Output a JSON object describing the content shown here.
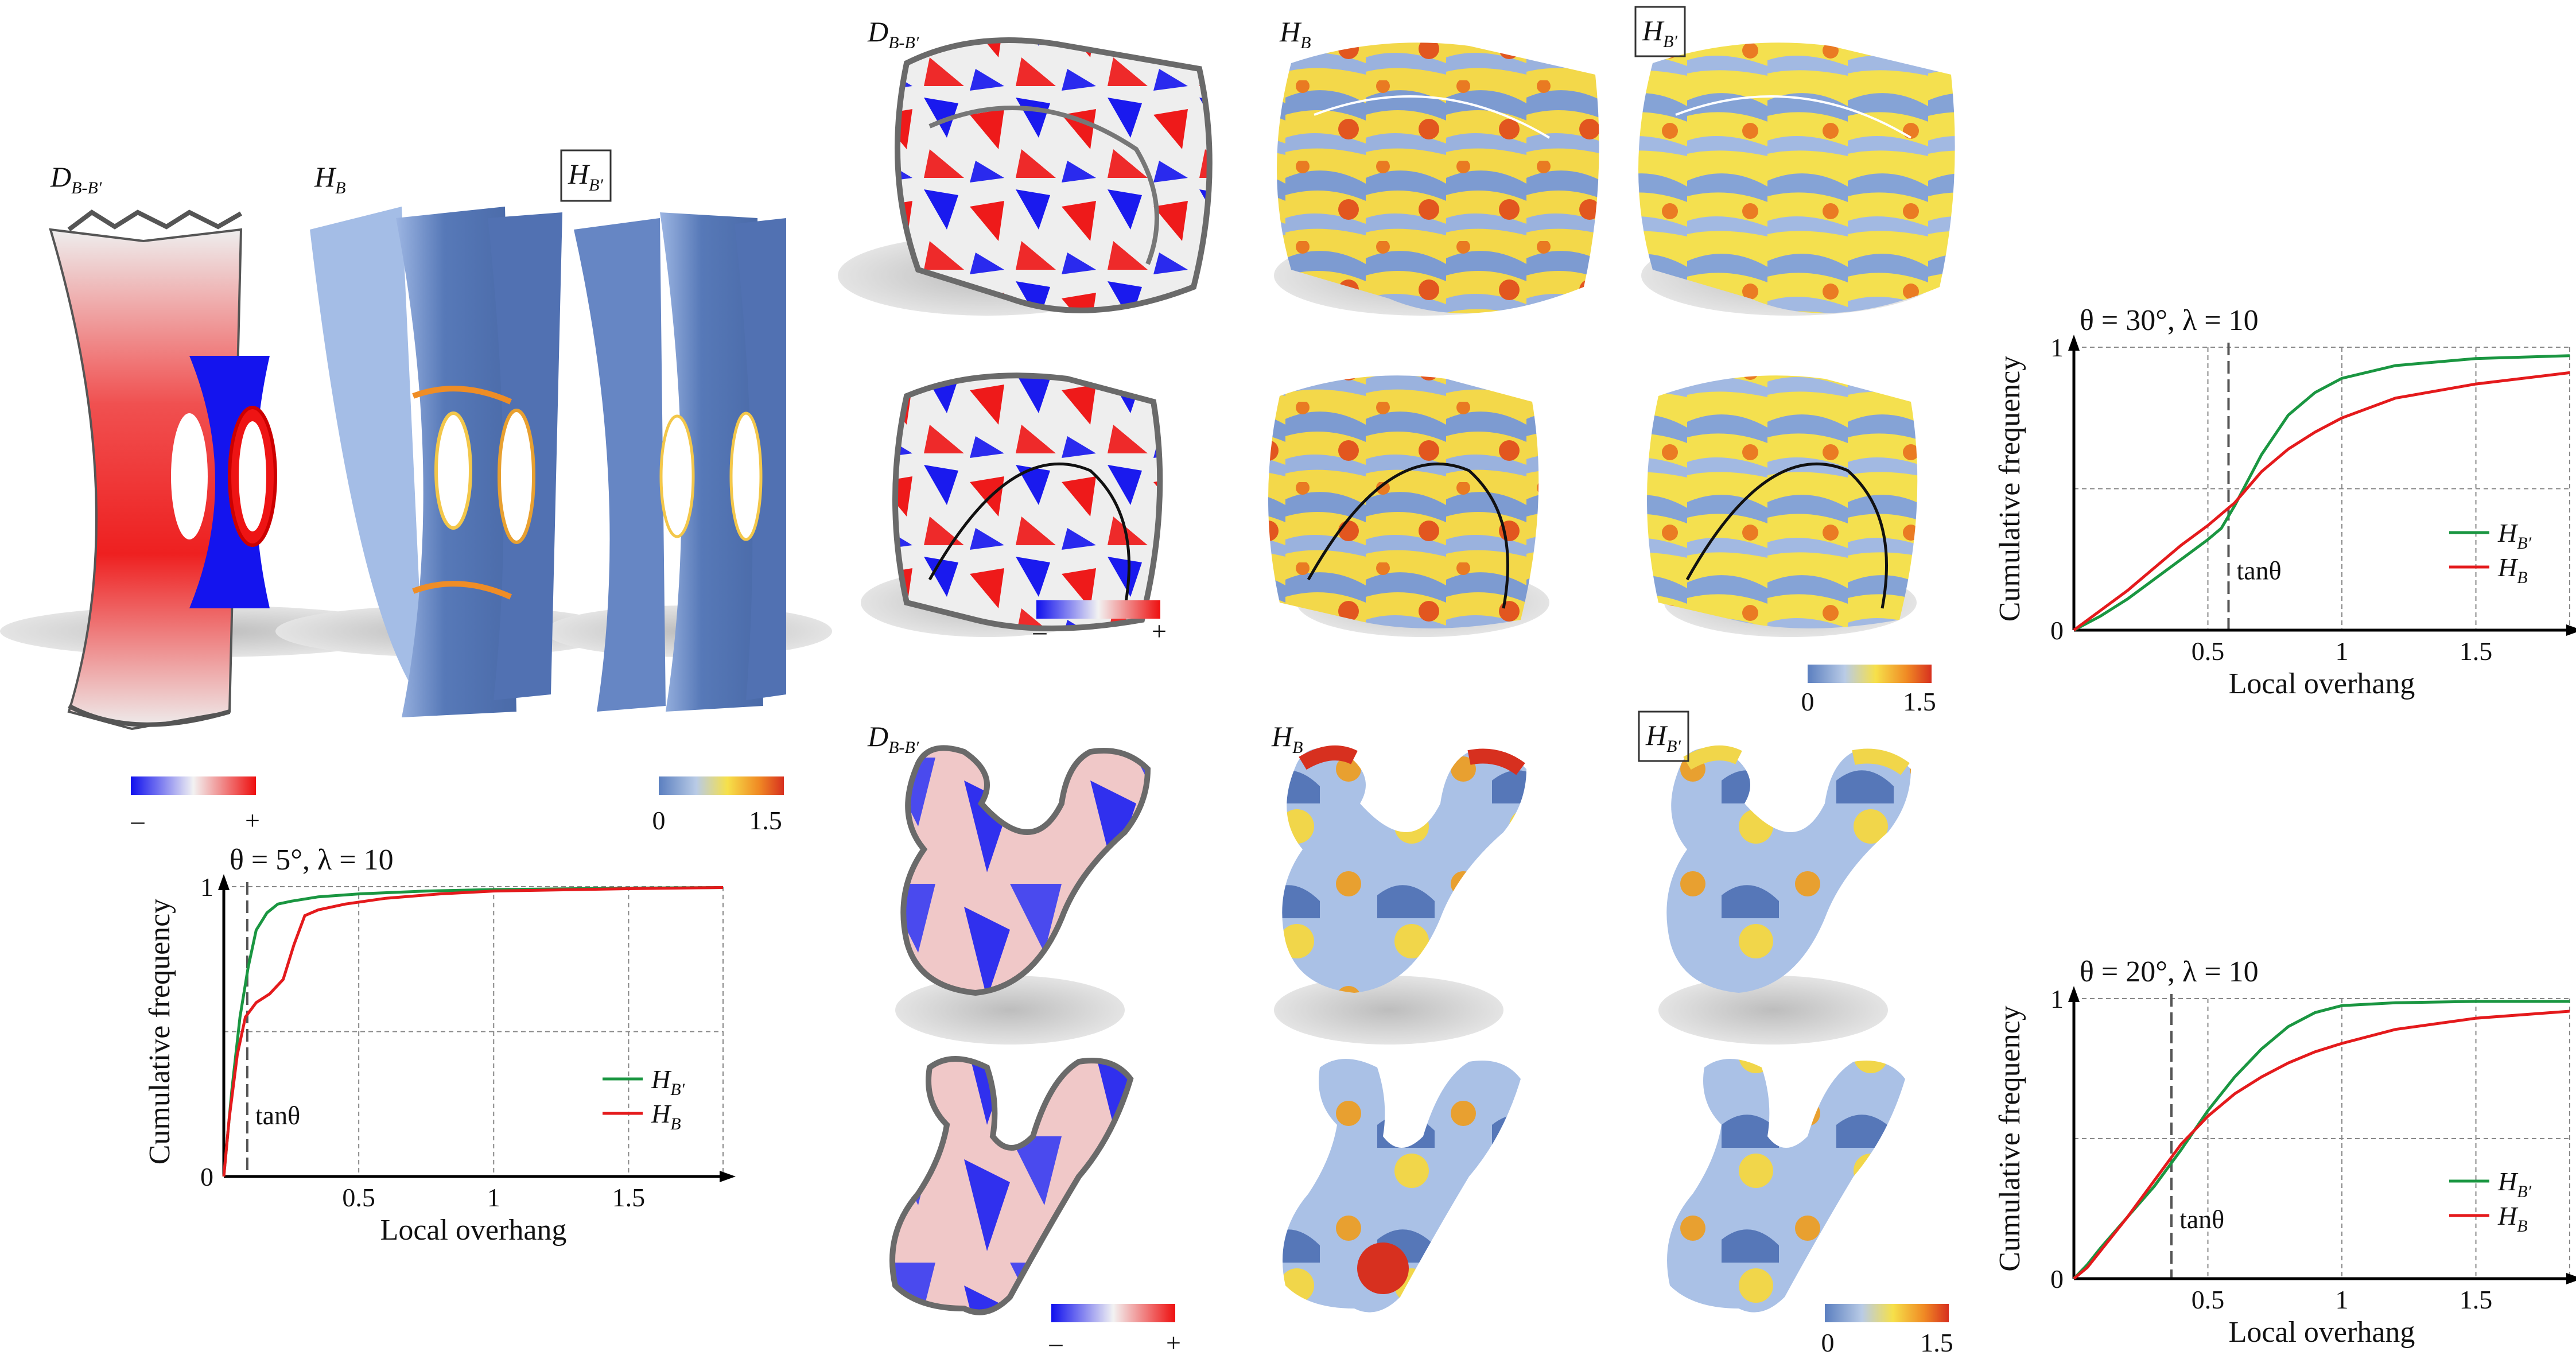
{
  "figure": {
    "labels": {
      "d": "D",
      "d_sub": "B-B′",
      "hb": "H",
      "hb_sub": "B",
      "hbp": "H",
      "hbp_sub": "B′"
    },
    "colorbars": {
      "diff_min": "–",
      "diff_max": "+",
      "h_min": "0",
      "h_max": "1.5"
    },
    "colors": {
      "green": "#1a9641",
      "red": "#e41a1c",
      "diff_neg": "#1010ee",
      "diff_pos": "#ee1010",
      "h_low": "#5b7fc0",
      "h_mid": "#f6e04a",
      "h_high": "#d7301f"
    }
  },
  "chart_data": [
    {
      "id": "c1",
      "type": "line",
      "title": "θ = 5°, λ = 10",
      "xlabel": "Local overhang",
      "ylabel": "Cumulative frequency",
      "xlim": [
        0,
        1.85
      ],
      "ylim": [
        0,
        1
      ],
      "xticks": [
        0.5,
        1,
        1.5
      ],
      "xtick_labels": [
        "0.5",
        "1",
        "1.5"
      ],
      "yticks": [
        0,
        1
      ],
      "ytick_labels": [
        "0",
        "1"
      ],
      "gridlines_y": [
        0.5,
        1
      ],
      "tan_x": 0.087,
      "tan_label": "tanθ",
      "series": [
        {
          "name": "H_B′",
          "legend": "H",
          "legend_sub": "B′",
          "color": "#1a9641",
          "x": [
            0,
            0.03,
            0.06,
            0.09,
            0.12,
            0.16,
            0.2,
            0.25,
            0.35,
            0.5,
            0.75,
            1.0,
            1.5,
            1.85
          ],
          "y": [
            0,
            0.3,
            0.55,
            0.72,
            0.85,
            0.91,
            0.94,
            0.95,
            0.965,
            0.975,
            0.985,
            0.99,
            0.995,
            0.997
          ]
        },
        {
          "name": "H_B",
          "legend": "H",
          "legend_sub": "B",
          "color": "#e41a1c",
          "x": [
            0,
            0.02,
            0.05,
            0.08,
            0.12,
            0.17,
            0.22,
            0.26,
            0.3,
            0.35,
            0.45,
            0.6,
            0.8,
            1.0,
            1.5,
            1.85
          ],
          "y": [
            0,
            0.2,
            0.42,
            0.55,
            0.6,
            0.63,
            0.68,
            0.8,
            0.9,
            0.92,
            0.94,
            0.96,
            0.975,
            0.985,
            0.993,
            0.997
          ]
        }
      ]
    },
    {
      "id": "c2",
      "type": "line",
      "title": "θ = 30°, λ = 10",
      "xlabel": "Local overhang",
      "ylabel": "Cumulative frequency",
      "xlim": [
        0,
        1.85
      ],
      "ylim": [
        0,
        1
      ],
      "xticks": [
        0.5,
        1,
        1.5
      ],
      "xtick_labels": [
        "0.5",
        "1",
        "1.5"
      ],
      "yticks": [
        0,
        1
      ],
      "ytick_labels": [
        "0",
        "1"
      ],
      "gridlines_y": [
        0.5,
        1
      ],
      "tan_x": 0.577,
      "tan_label": "tanθ",
      "series": [
        {
          "name": "H_B′",
          "legend": "H",
          "legend_sub": "B′",
          "color": "#1a9641",
          "x": [
            0,
            0.1,
            0.2,
            0.3,
            0.4,
            0.5,
            0.55,
            0.6,
            0.7,
            0.8,
            0.9,
            1.0,
            1.2,
            1.5,
            1.85
          ],
          "y": [
            0,
            0.05,
            0.11,
            0.18,
            0.25,
            0.32,
            0.36,
            0.44,
            0.62,
            0.76,
            0.84,
            0.89,
            0.935,
            0.96,
            0.97
          ]
        },
        {
          "name": "H_B",
          "legend": "H",
          "legend_sub": "B",
          "color": "#e41a1c",
          "x": [
            0,
            0.1,
            0.2,
            0.3,
            0.4,
            0.5,
            0.6,
            0.7,
            0.8,
            0.9,
            1.0,
            1.2,
            1.5,
            1.85
          ],
          "y": [
            0,
            0.07,
            0.14,
            0.22,
            0.3,
            0.37,
            0.45,
            0.56,
            0.64,
            0.7,
            0.75,
            0.82,
            0.87,
            0.91
          ]
        }
      ]
    },
    {
      "id": "c3",
      "type": "line",
      "title": "θ = 20°, λ = 10",
      "xlabel": "Local overhang",
      "ylabel": "Cumulative frequency",
      "xlim": [
        0,
        1.85
      ],
      "ylim": [
        0,
        1
      ],
      "xticks": [
        0.5,
        1,
        1.5
      ],
      "xtick_labels": [
        "0.5",
        "1",
        "1.5"
      ],
      "yticks": [
        0,
        1
      ],
      "ytick_labels": [
        "0",
        "1"
      ],
      "gridlines_y": [
        0.5,
        1
      ],
      "tan_x": 0.364,
      "tan_label": "tanθ",
      "series": [
        {
          "name": "H_B′",
          "legend": "H",
          "legend_sub": "B′",
          "color": "#1a9641",
          "x": [
            0,
            0.05,
            0.1,
            0.2,
            0.3,
            0.4,
            0.5,
            0.6,
            0.7,
            0.8,
            0.9,
            1.0,
            1.2,
            1.5,
            1.85
          ],
          "y": [
            0,
            0.05,
            0.11,
            0.22,
            0.33,
            0.46,
            0.6,
            0.72,
            0.82,
            0.9,
            0.95,
            0.975,
            0.985,
            0.99,
            0.99
          ]
        },
        {
          "name": "H_B",
          "legend": "H",
          "legend_sub": "B",
          "color": "#e41a1c",
          "x": [
            0,
            0.05,
            0.1,
            0.2,
            0.3,
            0.4,
            0.5,
            0.6,
            0.7,
            0.8,
            0.9,
            1.0,
            1.2,
            1.5,
            1.85
          ],
          "y": [
            0,
            0.04,
            0.1,
            0.22,
            0.35,
            0.48,
            0.58,
            0.66,
            0.72,
            0.77,
            0.81,
            0.84,
            0.89,
            0.93,
            0.955
          ]
        }
      ]
    }
  ]
}
